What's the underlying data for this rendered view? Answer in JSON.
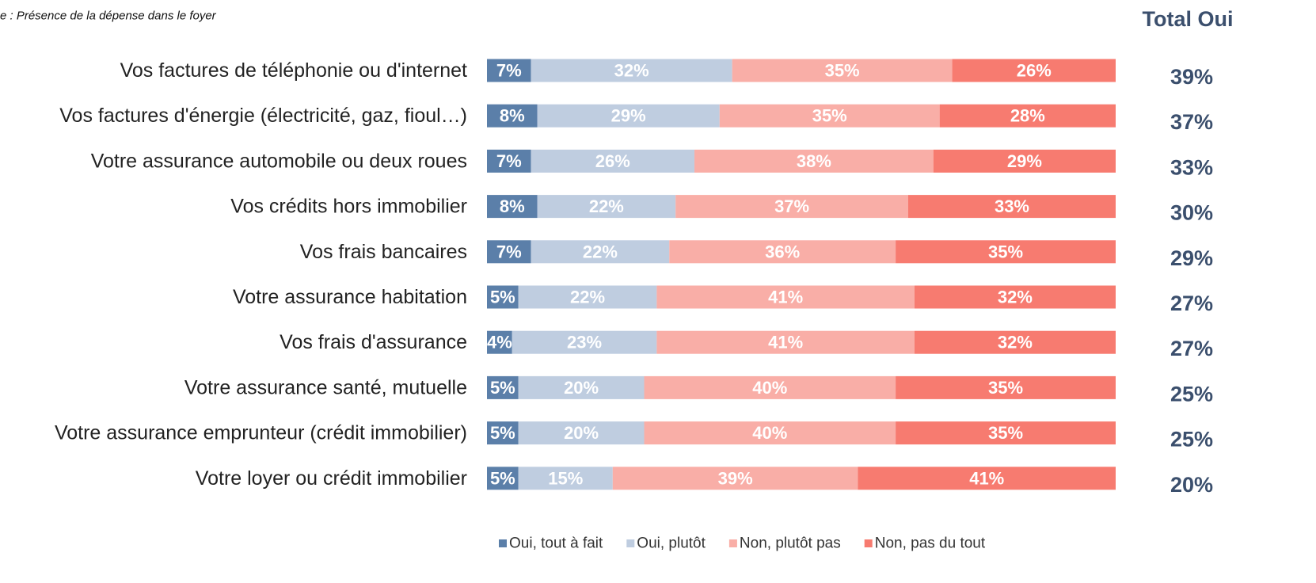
{
  "chart_data": {
    "type": "bar",
    "orientation": "horizontal",
    "stacked": true,
    "subtitle": "e : Présence de la dépense dans le foyer",
    "categories": [
      "Vos factures de téléphonie ou d'internet",
      "Vos factures d'énergie (électricité, gaz, fioul…)",
      "Votre assurance automobile ou deux roues",
      "Vos crédits hors immobilier",
      "Vos frais bancaires",
      "Votre assurance habitation",
      "Vos frais d'assurance",
      "Votre assurance santé, mutuelle",
      "Votre assurance emprunteur (crédit immobilier)",
      "Votre loyer ou crédit immobilier"
    ],
    "xlim": [
      0,
      100
    ],
    "series": [
      {
        "name": "Oui, tout à fait",
        "color": "#5b7fa9",
        "values": [
          7,
          8,
          7,
          8,
          7,
          5,
          4,
          5,
          5,
          5
        ],
        "value_labels": [
          "7%",
          "8%",
          "7%",
          "8%",
          "7%",
          "5%",
          "4%",
          "5%",
          "5%",
          "5%"
        ]
      },
      {
        "name": "Oui, plutôt",
        "color": "#bfcde0",
        "values": [
          32,
          29,
          26,
          22,
          22,
          22,
          23,
          20,
          20,
          15
        ],
        "value_labels": [
          "32%",
          "29%",
          "26%",
          "22%",
          "22%",
          "22%",
          "23%",
          "20%",
          "20%",
          "15%"
        ]
      },
      {
        "name": "Non, plutôt pas",
        "color": "#f9aea7",
        "values": [
          35,
          35,
          38,
          37,
          36,
          41,
          41,
          40,
          40,
          39
        ],
        "value_labels": [
          "35%",
          "35%",
          "38%",
          "37%",
          "36%",
          "41%",
          "41%",
          "40%",
          "40%",
          "39%"
        ]
      },
      {
        "name": "Non, pas du tout",
        "color": "#f77b70",
        "values": [
          26,
          28,
          29,
          33,
          35,
          32,
          32,
          35,
          35,
          41
        ],
        "value_labels": [
          "26%",
          "28%",
          "29%",
          "33%",
          "35%",
          "32%",
          "32%",
          "35%",
          "35%",
          "41%"
        ]
      }
    ],
    "totals": {
      "title": "Total Oui",
      "values": [
        39,
        37,
        33,
        30,
        29,
        27,
        27,
        25,
        25,
        20
      ],
      "value_labels": [
        "39%",
        "37%",
        "33%",
        "30%",
        "29%",
        "27%",
        "27%",
        "25%",
        "25%",
        "20%"
      ]
    }
  }
}
